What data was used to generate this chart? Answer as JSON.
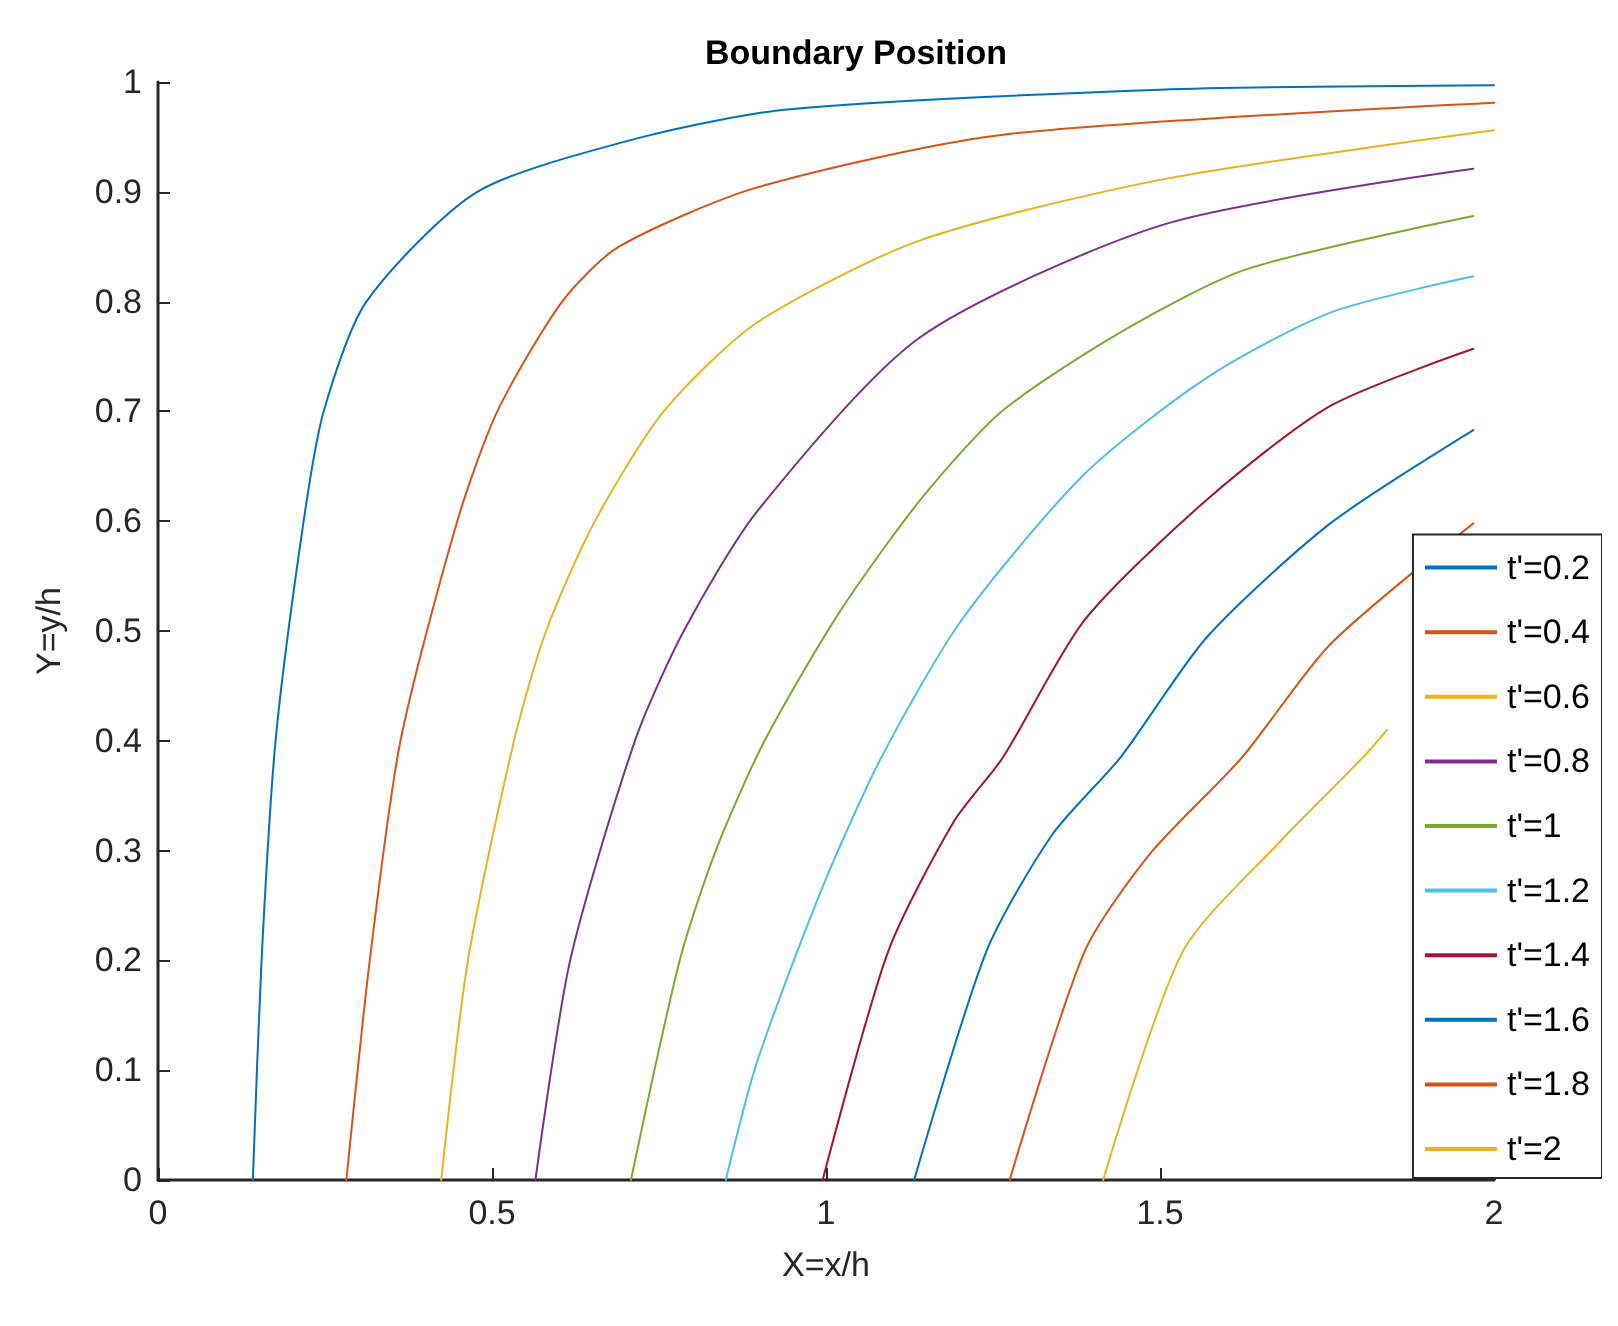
{
  "chart_data": {
    "type": "line",
    "title": "Boundary Position",
    "xlabel": "X=x/h",
    "ylabel": "Y=y/h",
    "xlim": [
      0,
      2
    ],
    "xticks": [
      0,
      0.5,
      1,
      1.5,
      2
    ],
    "ylim": [
      0,
      1
    ],
    "yticks": [
      0,
      0.1,
      0.2,
      0.3,
      0.4,
      0.5,
      0.6,
      0.7,
      0.8,
      0.9,
      1
    ],
    "grid": false,
    "legend": "bottom right",
    "marker": "none",
    "line_style": "solid",
    "series": [
      {
        "name": "t'=0.2",
        "color": "#0072bd",
        "x": [
          0.142,
          0.155,
          0.176,
          0.218,
          0.248,
          0.312,
          0.478,
          0.726,
          0.942,
          1.5,
          2
        ],
        "values": [
          0,
          0.2,
          0.4,
          0.6,
          0.7,
          0.8,
          0.9,
          0.95,
          0.975,
          0.993,
          0.997
        ]
      },
      {
        "name": "t'=0.4",
        "color": "#d95319",
        "x": [
          0.282,
          0.317,
          0.363,
          0.448,
          0.508,
          0.605,
          0.69,
          0.897,
          1.265,
          2
        ],
        "values": [
          0,
          0.2,
          0.4,
          0.6,
          0.7,
          0.8,
          0.85,
          0.904,
          0.952,
          0.981
        ]
      },
      {
        "name": "t'=0.6",
        "color": "#edb120",
        "x": [
          0.424,
          0.464,
          0.533,
          0.581,
          0.654,
          0.757,
          0.897,
          1.142,
          1.51,
          2
        ],
        "values": [
          0,
          0.2,
          0.4,
          0.5,
          0.6,
          0.7,
          0.781,
          0.856,
          0.912,
          0.956
        ]
      },
      {
        "name": "t'=0.8",
        "color": "#7e2f8e",
        "x": [
          0.565,
          0.617,
          0.714,
          0.787,
          0.897,
          1.142,
          1.51,
          1.969
        ],
        "values": [
          0,
          0.2,
          0.4,
          0.5,
          0.609,
          0.768,
          0.871,
          0.921
        ]
      },
      {
        "name": "t'=1",
        "color": "#77ac30",
        "x": [
          0.708,
          0.781,
          0.835,
          0.908,
          1.02,
          1.142,
          1.265,
          1.449,
          1.632,
          1.969
        ],
        "values": [
          0,
          0.2,
          0.3,
          0.4,
          0.517,
          0.62,
          0.701,
          0.775,
          0.83,
          0.878
        ]
      },
      {
        "name": "t'=1.2",
        "color": "#4dbeee",
        "x": [
          0.85,
          0.897,
          0.995,
          1.083,
          1.203,
          1.387,
          1.571,
          1.755,
          1.969
        ],
        "values": [
          0,
          0.108,
          0.267,
          0.385,
          0.51,
          0.643,
          0.731,
          0.79,
          0.823
        ]
      },
      {
        "name": "t'=1.4",
        "color": "#a2142f",
        "x": [
          0.995,
          1.093,
          1.191,
          1.265,
          1.387,
          1.571,
          1.755,
          1.969
        ],
        "values": [
          0,
          0.208,
          0.326,
          0.385,
          0.51,
          0.62,
          0.705,
          0.757
        ]
      },
      {
        "name": "t'=1.6",
        "color": "#0072bd",
        "x": [
          1.132,
          1.24,
          1.338,
          1.441,
          1.571,
          1.755,
          1.969
        ],
        "values": [
          0,
          0.208,
          0.314,
          0.385,
          0.495,
          0.598,
          0.683
        ]
      },
      {
        "name": "t'=1.8",
        "color": "#d95319",
        "x": [
          1.275,
          1.387,
          1.485,
          1.623,
          1.755,
          1.969
        ],
        "values": [
          0,
          0.208,
          0.297,
          0.385,
          0.488,
          0.598
        ]
      },
      {
        "name": "t'=2",
        "color": "#edb120",
        "x": [
          1.415,
          1.534,
          1.681,
          1.804,
          1.84
        ],
        "values": [
          0,
          0.208,
          0.309,
          0.385,
          0.41
        ]
      }
    ]
  }
}
